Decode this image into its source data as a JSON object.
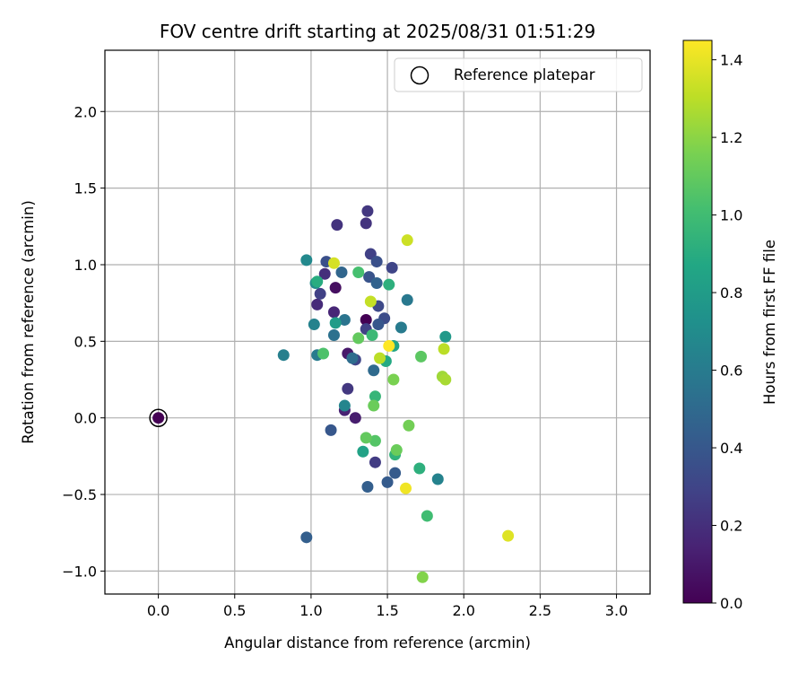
{
  "chart_data": {
    "type": "scatter",
    "title": "FOV centre drift starting at 2025/08/31 01:51:29",
    "xlabel": "Angular distance from reference (arcmin)",
    "ylabel": "Rotation from reference (arcmin)",
    "xlim": [
      -0.35,
      3.22
    ],
    "ylim": [
      -1.15,
      2.4
    ],
    "xticks": [
      "0.0",
      "0.5",
      "1.0",
      "1.5",
      "2.0",
      "2.5",
      "3.0"
    ],
    "yticks": [
      "−1.0",
      "−0.5",
      "0.0",
      "0.5",
      "1.0",
      "1.5",
      "2.0"
    ],
    "grid": true,
    "legend": {
      "placement": "upper right",
      "entries": [
        "Reference platepar"
      ]
    },
    "reference_point": {
      "x": 0.0,
      "y": 0.0,
      "hours": 0.0
    },
    "colorbar": {
      "label": "Hours from first FF file",
      "colormap": "viridis",
      "range": [
        0.0,
        1.45
      ],
      "ticks": [
        "0.0",
        "0.2",
        "0.4",
        "0.6",
        "0.8",
        "1.0",
        "1.2",
        "1.4"
      ]
    },
    "series": [
      {
        "points": [
          {
            "x": 1.36,
            "y": 0.64,
            "h": 0.0
          },
          {
            "x": 1.16,
            "y": 0.85,
            "h": 0.06
          },
          {
            "x": 1.24,
            "y": 0.42,
            "h": 0.1
          },
          {
            "x": 1.29,
            "y": 0.0,
            "h": 0.12
          },
          {
            "x": 1.22,
            "y": 0.05,
            "h": 0.14
          },
          {
            "x": 1.15,
            "y": 0.69,
            "h": 0.16
          },
          {
            "x": 1.04,
            "y": 0.74,
            "h": 0.18
          },
          {
            "x": 1.09,
            "y": 0.94,
            "h": 0.2
          },
          {
            "x": 1.17,
            "y": 1.26,
            "h": 0.22
          },
          {
            "x": 1.36,
            "y": 1.27,
            "h": 0.22
          },
          {
            "x": 1.37,
            "y": 1.35,
            "h": 0.24
          },
          {
            "x": 1.24,
            "y": 0.19,
            "h": 0.24
          },
          {
            "x": 1.42,
            "y": -0.29,
            "h": 0.26
          },
          {
            "x": 1.39,
            "y": 1.07,
            "h": 0.28
          },
          {
            "x": 1.06,
            "y": 0.81,
            "h": 0.28
          },
          {
            "x": 1.36,
            "y": 0.58,
            "h": 0.28
          },
          {
            "x": 1.29,
            "y": 0.38,
            "h": 0.3
          },
          {
            "x": 1.53,
            "y": 0.98,
            "h": 0.3
          },
          {
            "x": 1.44,
            "y": 0.73,
            "h": 0.32
          },
          {
            "x": 1.48,
            "y": 0.65,
            "h": 0.34
          },
          {
            "x": 1.1,
            "y": 1.02,
            "h": 0.36
          },
          {
            "x": 1.43,
            "y": 1.02,
            "h": 0.36
          },
          {
            "x": 1.38,
            "y": 0.92,
            "h": 0.38
          },
          {
            "x": 1.44,
            "y": 0.61,
            "h": 0.4
          },
          {
            "x": 1.13,
            "y": -0.08,
            "h": 0.4
          },
          {
            "x": 1.55,
            "y": -0.36,
            "h": 0.42
          },
          {
            "x": 1.5,
            "y": -0.42,
            "h": 0.42
          },
          {
            "x": 1.37,
            "y": -0.45,
            "h": 0.44
          },
          {
            "x": 0.97,
            "y": -0.78,
            "h": 0.44
          },
          {
            "x": 1.43,
            "y": 0.88,
            "h": 0.46
          },
          {
            "x": 1.2,
            "y": 0.95,
            "h": 0.48
          },
          {
            "x": 1.41,
            "y": 0.31,
            "h": 0.5
          },
          {
            "x": 1.27,
            "y": 0.39,
            "h": 0.52
          },
          {
            "x": 1.15,
            "y": 0.54,
            "h": 0.54
          },
          {
            "x": 1.22,
            "y": 0.64,
            "h": 0.56
          },
          {
            "x": 1.63,
            "y": 0.77,
            "h": 0.58
          },
          {
            "x": 1.59,
            "y": 0.59,
            "h": 0.6
          },
          {
            "x": 1.04,
            "y": 0.41,
            "h": 0.6
          },
          {
            "x": 0.82,
            "y": 0.41,
            "h": 0.62
          },
          {
            "x": 1.02,
            "y": 0.61,
            "h": 0.64
          },
          {
            "x": 1.83,
            "y": -0.4,
            "h": 0.64
          },
          {
            "x": 1.22,
            "y": 0.08,
            "h": 0.66
          },
          {
            "x": 0.97,
            "y": 1.03,
            "h": 0.68
          },
          {
            "x": 1.03,
            "y": 0.88,
            "h": 0.7
          },
          {
            "x": 1.88,
            "y": 0.53,
            "h": 0.78
          },
          {
            "x": 1.16,
            "y": 0.62,
            "h": 0.8
          },
          {
            "x": 1.34,
            "y": -0.22,
            "h": 0.84
          },
          {
            "x": 1.54,
            "y": 0.47,
            "h": 0.86
          },
          {
            "x": 1.49,
            "y": 0.37,
            "h": 0.88
          },
          {
            "x": 1.04,
            "y": 0.89,
            "h": 0.9
          },
          {
            "x": 1.51,
            "y": 0.87,
            "h": 0.92
          },
          {
            "x": 1.71,
            "y": -0.33,
            "h": 0.92
          },
          {
            "x": 1.55,
            "y": -0.24,
            "h": 0.94
          },
          {
            "x": 1.42,
            "y": 0.14,
            "h": 0.96
          },
          {
            "x": 1.4,
            "y": 0.54,
            "h": 0.98
          },
          {
            "x": 1.76,
            "y": -0.64,
            "h": 1.0
          },
          {
            "x": 1.31,
            "y": 0.95,
            "h": 1.02
          },
          {
            "x": 1.08,
            "y": 0.42,
            "h": 1.04
          },
          {
            "x": 1.42,
            "y": -0.15,
            "h": 1.06
          },
          {
            "x": 1.72,
            "y": 0.4,
            "h": 1.08
          },
          {
            "x": 1.36,
            "y": -0.13,
            "h": 1.1
          },
          {
            "x": 1.31,
            "y": 0.52,
            "h": 1.1
          },
          {
            "x": 1.41,
            "y": 0.08,
            "h": 1.12
          },
          {
            "x": 1.56,
            "y": -0.21,
            "h": 1.12
          },
          {
            "x": 1.64,
            "y": -0.05,
            "h": 1.14
          },
          {
            "x": 1.54,
            "y": 0.25,
            "h": 1.16
          },
          {
            "x": 1.73,
            "y": -1.04,
            "h": 1.18
          },
          {
            "x": 1.86,
            "y": 0.27,
            "h": 1.24
          },
          {
            "x": 1.88,
            "y": 0.25,
            "h": 1.26
          },
          {
            "x": 1.45,
            "y": 0.39,
            "h": 1.3
          },
          {
            "x": 1.87,
            "y": 0.45,
            "h": 1.3
          },
          {
            "x": 1.39,
            "y": 0.76,
            "h": 1.32
          },
          {
            "x": 1.63,
            "y": 1.16,
            "h": 1.34
          },
          {
            "x": 1.15,
            "y": 1.01,
            "h": 1.36
          },
          {
            "x": 2.29,
            "y": -0.77,
            "h": 1.38
          },
          {
            "x": 1.62,
            "y": -0.46,
            "h": 1.42
          },
          {
            "x": 1.51,
            "y": 0.47,
            "h": 1.45
          }
        ]
      }
    ]
  }
}
